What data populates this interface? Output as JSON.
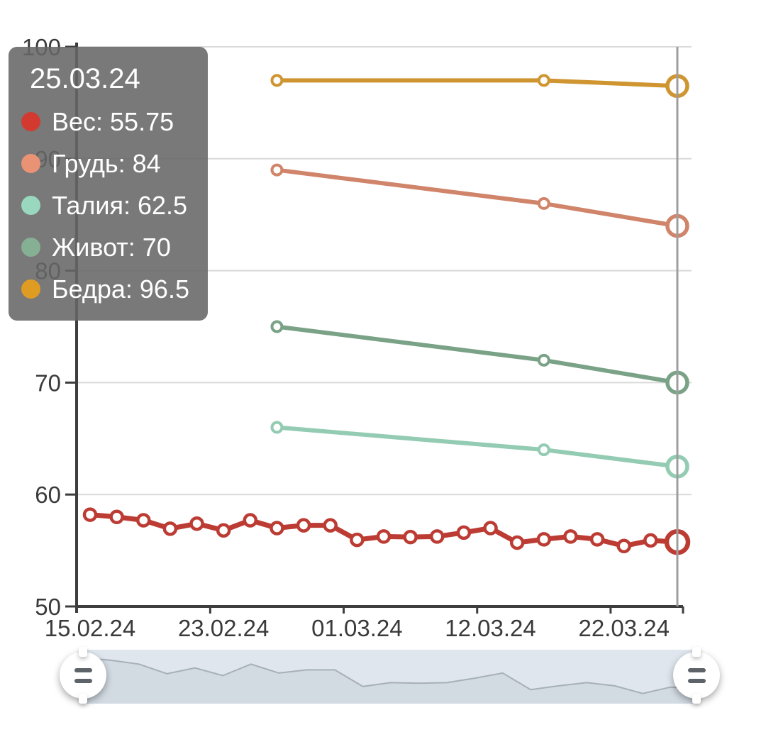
{
  "tooltip": {
    "date": "25.03.24",
    "rows": [
      {
        "label": "Вес",
        "value": "55.75",
        "text": "Вес: 55.75",
        "color": "#d23a30"
      },
      {
        "label": "Грудь",
        "value": "84",
        "text": "Грудь: 84",
        "color": "#ea9374"
      },
      {
        "label": "Талия",
        "value": "62.5",
        "text": "Талия: 62.5",
        "color": "#9ad7bf"
      },
      {
        "label": "Живот",
        "value": "70",
        "text": "Живот: 70",
        "color": "#86b093"
      },
      {
        "label": "Бедра",
        "value": "96.5",
        "text": "Бедра: 96.5",
        "color": "#df9c22"
      }
    ]
  },
  "chart_data": {
    "type": "line",
    "title": "",
    "xlabel": "",
    "ylabel": "",
    "ylim": [
      50,
      100
    ],
    "y_ticks": [
      100,
      90,
      80,
      70,
      60,
      50
    ],
    "x_tick_labels": [
      "15.02.24",
      "23.02.24",
      "01.03.24",
      "12.03.24",
      "22.03.24"
    ],
    "x_tick_indices": [
      0,
      5,
      10,
      15,
      20
    ],
    "n_points": 23,
    "selected_index": 22,
    "selected_date": "25.03.24",
    "grid": true,
    "legend_position": "tooltip-top-left",
    "series": [
      {
        "name": "Бедра",
        "color": "#cf9531",
        "indices": [
          7,
          17,
          22
        ],
        "values": [
          97,
          97,
          96.5
        ]
      },
      {
        "name": "Грудь",
        "color": "#d0846a",
        "indices": [
          7,
          17,
          22
        ],
        "values": [
          89,
          86,
          84
        ]
      },
      {
        "name": "Живот",
        "color": "#7aa287",
        "indices": [
          7,
          17,
          22
        ],
        "values": [
          75,
          72,
          70
        ]
      },
      {
        "name": "Талия",
        "color": "#93cbb3",
        "indices": [
          7,
          17,
          22
        ],
        "values": [
          66,
          64,
          62.5
        ]
      },
      {
        "name": "Вес",
        "color": "#bc3c34",
        "indices": [
          0,
          1,
          2,
          3,
          4,
          5,
          6,
          7,
          8,
          9,
          10,
          11,
          12,
          13,
          14,
          15,
          16,
          17,
          18,
          19,
          20,
          21,
          22
        ],
        "values": [
          58.2,
          58.0,
          57.7,
          56.95,
          57.4,
          56.8,
          57.7,
          57.0,
          57.25,
          57.25,
          55.95,
          56.25,
          56.2,
          56.25,
          56.6,
          57.0,
          55.7,
          56.0,
          56.25,
          56.0,
          55.4,
          55.9,
          55.75
        ]
      }
    ],
    "colors": {
      "axis": "#3d3d3d",
      "grid": "#d9d9d9",
      "labels": "#3a3a3a",
      "highlight_line": "#9e9e9e",
      "point_fill": "#ffffff"
    }
  },
  "slider": {
    "preview_of": "Вес",
    "band_color": "#dfe6ed",
    "area_color": "#d2dae2",
    "line_color": "#a7afb8",
    "handle_icon": "drag-handle-icon"
  }
}
